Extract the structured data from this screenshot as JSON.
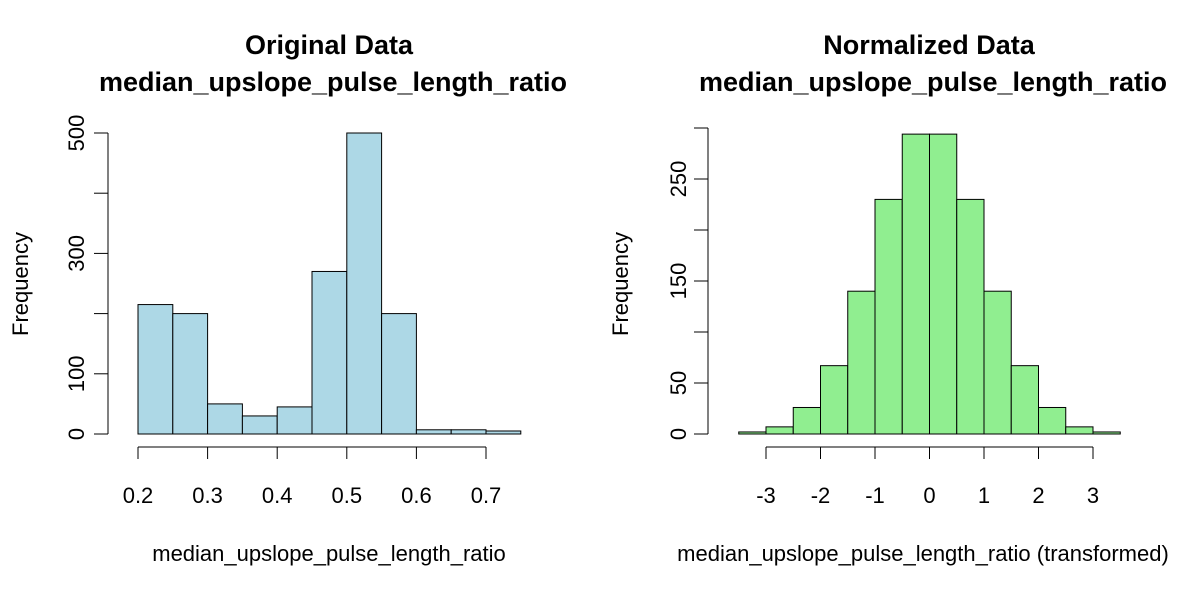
{
  "chart_data": [
    {
      "type": "histogram",
      "title_line1": "Original Data",
      "title_line2": "median_upslope_pulse_length_ratio",
      "xlabel": "median_upslope_pulse_length_ratio",
      "ylabel": "Frequency",
      "bar_color": "#ADD8E6",
      "x_ticks": [
        "0.2",
        "0.3",
        "0.4",
        "0.5",
        "0.6",
        "0.7"
      ],
      "y_ticks": [
        "0",
        "100",
        "300",
        "500"
      ],
      "xlim": [
        0.2,
        0.75
      ],
      "ylim": [
        0,
        500
      ],
      "bins": [
        {
          "x0": 0.2,
          "x1": 0.25,
          "count": 215
        },
        {
          "x0": 0.25,
          "x1": 0.3,
          "count": 200
        },
        {
          "x0": 0.3,
          "x1": 0.35,
          "count": 50
        },
        {
          "x0": 0.35,
          "x1": 0.4,
          "count": 30
        },
        {
          "x0": 0.4,
          "x1": 0.45,
          "count": 45
        },
        {
          "x0": 0.45,
          "x1": 0.5,
          "count": 270
        },
        {
          "x0": 0.5,
          "x1": 0.55,
          "count": 500
        },
        {
          "x0": 0.55,
          "x1": 0.6,
          "count": 200
        },
        {
          "x0": 0.6,
          "x1": 0.65,
          "count": 7
        },
        {
          "x0": 0.65,
          "x1": 0.7,
          "count": 7
        },
        {
          "x0": 0.7,
          "x1": 0.75,
          "count": 5
        }
      ]
    },
    {
      "type": "histogram",
      "title_line1": "Normalized Data",
      "title_line2": "median_upslope_pulse_length_ratio",
      "xlabel": "median_upslope_pulse_length_ratio (transformed)",
      "ylabel": "Frequency",
      "bar_color": "#90EE90",
      "x_ticks": [
        "-3",
        "-2",
        "-1",
        "0",
        "1",
        "2",
        "3"
      ],
      "y_ticks": [
        "0",
        "50",
        "150",
        "250"
      ],
      "xlim": [
        -3.5,
        3.5
      ],
      "ylim": [
        0,
        300
      ],
      "bins": [
        {
          "x0": -3.5,
          "x1": -3.0,
          "count": 2
        },
        {
          "x0": -3.0,
          "x1": -2.5,
          "count": 7
        },
        {
          "x0": -2.5,
          "x1": -2.0,
          "count": 26
        },
        {
          "x0": -2.0,
          "x1": -1.5,
          "count": 67
        },
        {
          "x0": -1.5,
          "x1": -1.0,
          "count": 140
        },
        {
          "x0": -1.0,
          "x1": -0.5,
          "count": 230
        },
        {
          "x0": -0.5,
          "x1": 0.0,
          "count": 294
        },
        {
          "x0": 0.0,
          "x1": 0.5,
          "count": 294
        },
        {
          "x0": 0.5,
          "x1": 1.0,
          "count": 230
        },
        {
          "x0": 1.0,
          "x1": 1.5,
          "count": 140
        },
        {
          "x0": 1.5,
          "x1": 2.0,
          "count": 67
        },
        {
          "x0": 2.0,
          "x1": 2.5,
          "count": 26
        },
        {
          "x0": 2.5,
          "x1": 3.0,
          "count": 7
        },
        {
          "x0": 3.0,
          "x1": 3.5,
          "count": 2
        }
      ]
    }
  ]
}
